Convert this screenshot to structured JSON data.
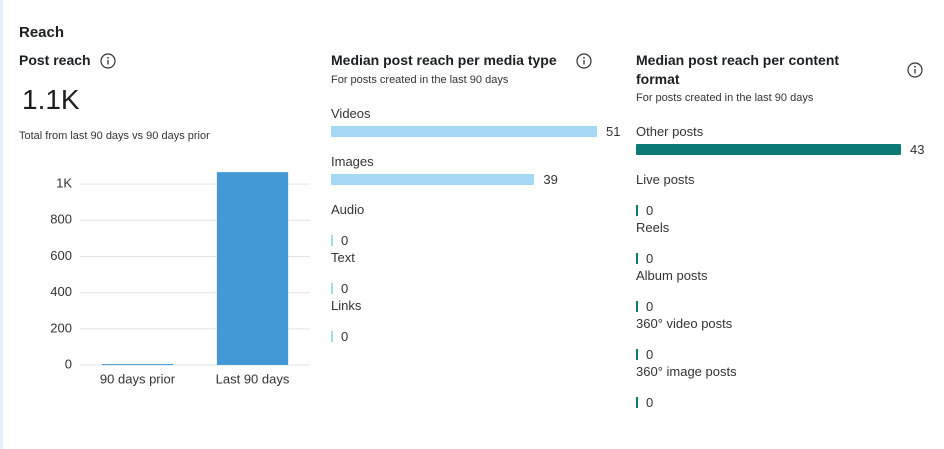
{
  "section_title": "Reach",
  "post_reach": {
    "title": "Post reach",
    "value_label": "1.1K",
    "subtitle": "Total from last 90 days vs 90 days prior",
    "chart_data": {
      "type": "bar",
      "categories": [
        "90 days prior",
        "Last 90 days"
      ],
      "values": [
        5,
        1066
      ],
      "color": "#4299d6",
      "ylim": [
        0,
        1100
      ],
      "yticks": [
        0,
        200,
        400,
        600,
        800,
        {
          "value": 1000,
          "label": "1K"
        }
      ],
      "grid": true
    }
  },
  "media_type": {
    "title": "Median post reach per media type",
    "subtitle": "For posts created in the last 90 days",
    "chart_data": {
      "type": "hbar",
      "categories": [
        "Videos",
        "Images",
        "Audio",
        "Text",
        "Links"
      ],
      "values": [
        51,
        39,
        0,
        0,
        0
      ],
      "color": "#a3d9f5"
    }
  },
  "content_format": {
    "title": "Median post reach per content format",
    "subtitle": "For posts created in the last 90 days",
    "chart_data": {
      "type": "hbar",
      "categories": [
        "Other posts",
        "Live posts",
        "Reels",
        "Album posts",
        "360° video posts",
        "360° image posts"
      ],
      "values": [
        43,
        0,
        0,
        0,
        0,
        0
      ],
      "color": "#0b7a75"
    }
  }
}
